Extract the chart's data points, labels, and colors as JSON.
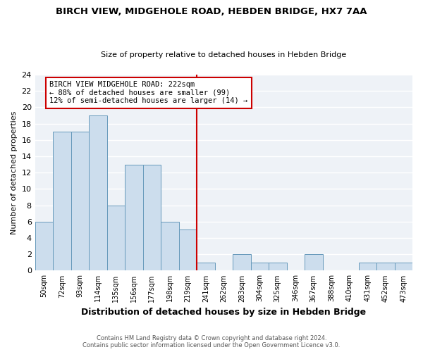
{
  "title": "BIRCH VIEW, MIDGEHOLE ROAD, HEBDEN BRIDGE, HX7 7AA",
  "subtitle": "Size of property relative to detached houses in Hebden Bridge",
  "xlabel": "Distribution of detached houses by size in Hebden Bridge",
  "ylabel": "Number of detached properties",
  "bin_labels": [
    "50sqm",
    "72sqm",
    "93sqm",
    "114sqm",
    "135sqm",
    "156sqm",
    "177sqm",
    "198sqm",
    "219sqm",
    "241sqm",
    "262sqm",
    "283sqm",
    "304sqm",
    "325sqm",
    "346sqm",
    "367sqm",
    "388sqm",
    "410sqm",
    "431sqm",
    "452sqm",
    "473sqm"
  ],
  "bar_heights": [
    6,
    17,
    17,
    19,
    8,
    13,
    13,
    6,
    5,
    1,
    0,
    2,
    1,
    1,
    0,
    2,
    0,
    0,
    1,
    1,
    1
  ],
  "bar_color": "#ccdded",
  "bar_edge_color": "#6699bb",
  "vline_color": "#cc0000",
  "annotation_box_text": "BIRCH VIEW MIDGEHOLE ROAD: 222sqm\n← 88% of detached houses are smaller (99)\n12% of semi-detached houses are larger (14) →",
  "ylim": [
    0,
    24
  ],
  "yticks": [
    0,
    2,
    4,
    6,
    8,
    10,
    12,
    14,
    16,
    18,
    20,
    22,
    24
  ],
  "footer_line1": "Contains HM Land Registry data © Crown copyright and database right 2024.",
  "footer_line2": "Contains public sector information licensed under the Open Government Licence v3.0.",
  "bg_color": "#eef2f7"
}
